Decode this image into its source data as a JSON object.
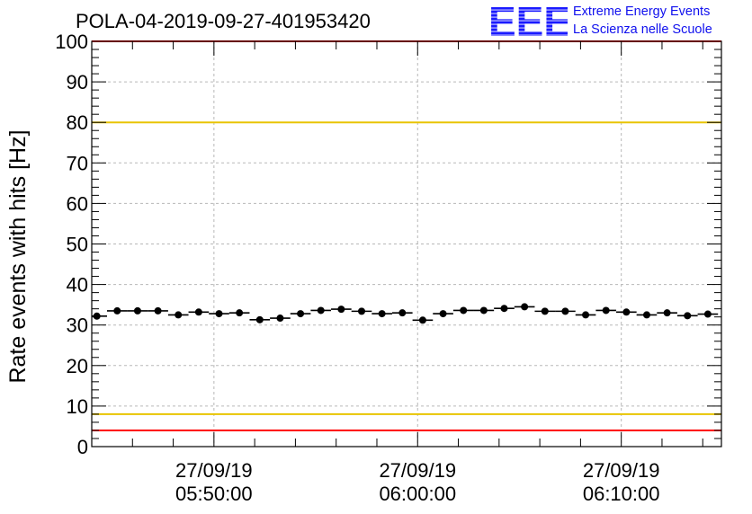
{
  "title": "POLA-04-2019-09-27-401953420",
  "logo": {
    "mark": "EEE",
    "line1": "Extreme Energy Events",
    "line2": "La Scienza nelle Scuole"
  },
  "chart_data": {
    "type": "scatter",
    "title": "POLA-04-2019-09-27-401953420",
    "xlabel": "",
    "ylabel": "Rate events with hits [Hz]",
    "x_unit": "time (27/09/19)",
    "xlim": [
      "05:44:00",
      "06:14:55"
    ],
    "ylim": [
      0,
      100
    ],
    "yticks": [
      0,
      10,
      20,
      30,
      40,
      50,
      60,
      70,
      80,
      90,
      100
    ],
    "xticks": [
      {
        "time": "05:50:00",
        "date": "27/09/19",
        "time_label": "05:50:00"
      },
      {
        "time": "06:00:00",
        "date": "27/09/19",
        "time_label": "06:00:00"
      },
      {
        "time": "06:10:00",
        "date": "27/09/19",
        "time_label": "06:10:00"
      }
    ],
    "grid": true,
    "reference_lines": [
      {
        "y": 100,
        "color": "#ff0000"
      },
      {
        "y": 80,
        "color": "#e8c400"
      },
      {
        "y": 8,
        "color": "#e8c400"
      },
      {
        "y": 4,
        "color": "#ff0000"
      }
    ],
    "bin_width_minutes": 1,
    "series": [
      {
        "x": [
          "05:44:15",
          "05:45:15",
          "05:46:15",
          "05:47:15",
          "05:48:15",
          "05:49:15",
          "05:50:15",
          "05:51:15",
          "05:52:15",
          "05:53:15",
          "05:54:15",
          "05:55:15",
          "05:56:15",
          "05:57:15",
          "05:58:15",
          "05:59:15",
          "06:00:15",
          "06:01:15",
          "06:02:15",
          "06:03:15",
          "06:04:15",
          "06:05:15",
          "06:06:15",
          "06:07:15",
          "06:08:15",
          "06:09:15",
          "06:10:15",
          "06:11:15",
          "06:12:15",
          "06:13:15",
          "06:14:15"
        ],
        "y": [
          32.2,
          33.5,
          33.5,
          33.5,
          32.5,
          33.2,
          32.8,
          33.0,
          31.3,
          31.7,
          32.8,
          33.6,
          33.9,
          33.4,
          32.8,
          33.0,
          31.2,
          32.8,
          33.6,
          33.6,
          34.1,
          34.5,
          33.4,
          33.4,
          32.5,
          33.6,
          33.2,
          32.5,
          33.0,
          32.3,
          32.7
        ],
        "color": "#000000"
      }
    ]
  }
}
